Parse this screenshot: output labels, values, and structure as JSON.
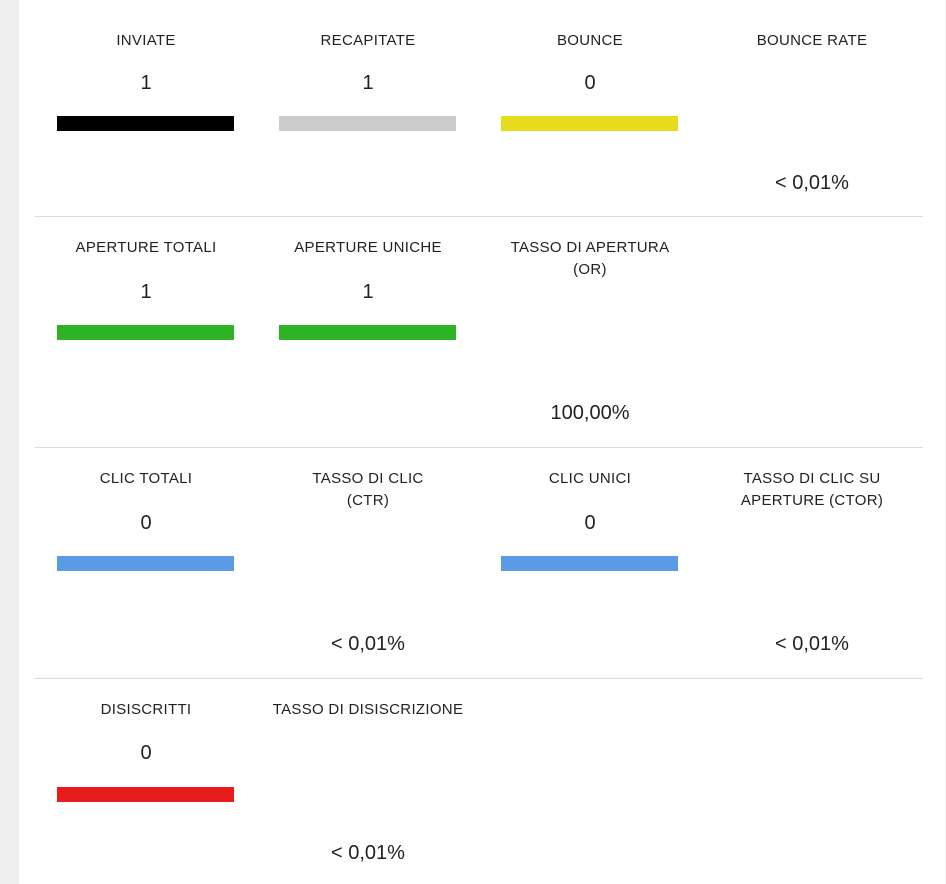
{
  "rows": [
    {
      "cells": [
        {
          "title": "INVIATE",
          "value": "1",
          "type": "bar",
          "color": "#000000"
        },
        {
          "title": "RECAPITATE",
          "value": "1",
          "type": "bar",
          "color": "#cccccc"
        },
        {
          "title": "BOUNCE",
          "value": "0",
          "type": "bar",
          "color": "#e6dc1e"
        },
        {
          "title": "BOUNCE RATE",
          "pct": "< 0,01%",
          "type": "gauge",
          "fill": 0,
          "color": "#2db324"
        }
      ]
    },
    {
      "cells": [
        {
          "title": "APERTURE TOTALI",
          "value": "1",
          "type": "bar",
          "color": "#2db324"
        },
        {
          "title": "APERTURE UNICHE",
          "value": "1",
          "type": "bar",
          "color": "#2db324"
        },
        {
          "title": "TASSO DI APERTURA",
          "title2": "(OR)",
          "pct": "100,00%",
          "type": "gauge",
          "fill": 1,
          "color": "#2db324"
        }
      ]
    },
    {
      "cells": [
        {
          "title": "CLIC TOTALI",
          "value": "0",
          "type": "bar",
          "color": "#5b9be6"
        },
        {
          "title": "TASSO DI CLIC",
          "title2": "(CTR)",
          "pct": "< 0,01%",
          "type": "gauge",
          "fill": 0,
          "color": "#5b9be6"
        },
        {
          "title": "CLIC UNICI",
          "value": "0",
          "type": "bar",
          "color": "#5b9be6"
        },
        {
          "title": "TASSO DI CLIC SU",
          "title2": "APERTURE (CTOR)",
          "pct": "< 0,01%",
          "type": "gauge",
          "fill": 0,
          "color": "#5b9be6"
        }
      ]
    },
    {
      "cells": [
        {
          "title": "DISISCRITTI",
          "value": "0",
          "type": "bar",
          "color": "#e81c1c"
        },
        {
          "title": "TASSO DI DISISCRIZIONE",
          "pct": "< 0,01%",
          "type": "gauge",
          "fill": 0,
          "color": "#e81c1c"
        }
      ]
    }
  ],
  "gauge_track_color": "#eeeeee"
}
